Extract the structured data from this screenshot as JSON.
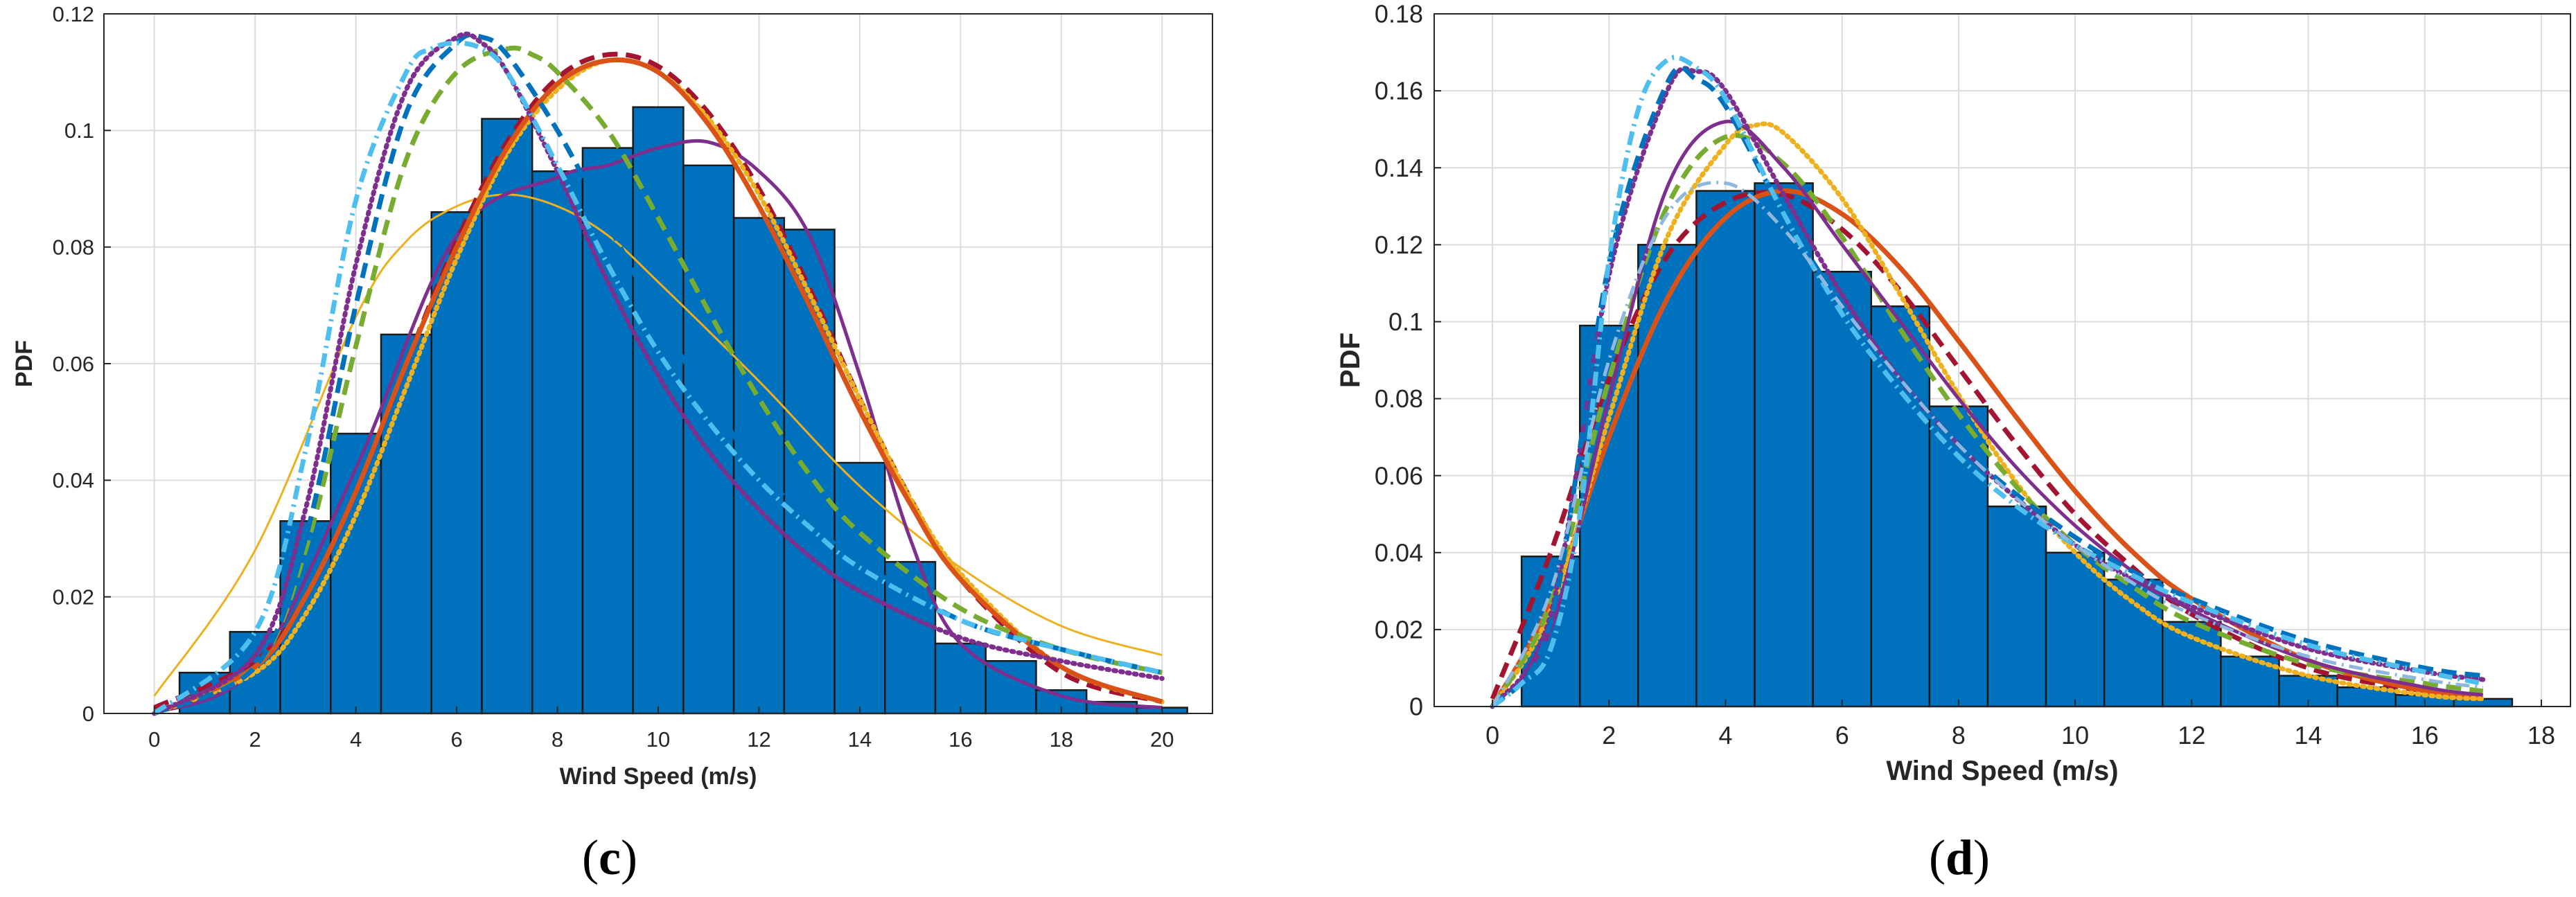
{
  "chart_data": [
    {
      "type": "bar",
      "panel_label": "c",
      "xlabel": "Wind Speed (m/s)",
      "ylabel": "PDF",
      "xlim": [
        -1,
        21
      ],
      "ylim": [
        0,
        0.12
      ],
      "xticks": [
        "0",
        "2",
        "4",
        "6",
        "8",
        "10",
        "12",
        "14",
        "16",
        "18",
        "20"
      ],
      "yticks": [
        "0",
        "0.02",
        "0.04",
        "0.06",
        "0.08",
        "0.1",
        "0.12"
      ],
      "grid": true,
      "bin_width": 1,
      "bins": [
        {
          "center": 1,
          "value": 0.007
        },
        {
          "center": 2,
          "value": 0.014
        },
        {
          "center": 3,
          "value": 0.033
        },
        {
          "center": 4,
          "value": 0.048
        },
        {
          "center": 5,
          "value": 0.065
        },
        {
          "center": 6,
          "value": 0.086
        },
        {
          "center": 7,
          "value": 0.102
        },
        {
          "center": 8,
          "value": 0.093
        },
        {
          "center": 9,
          "value": 0.097
        },
        {
          "center": 10,
          "value": 0.104
        },
        {
          "center": 11,
          "value": 0.094
        },
        {
          "center": 12,
          "value": 0.085
        },
        {
          "center": 13,
          "value": 0.083
        },
        {
          "center": 14,
          "value": 0.043
        },
        {
          "center": 15,
          "value": 0.026
        },
        {
          "center": 16,
          "value": 0.012
        },
        {
          "center": 17,
          "value": 0.009
        },
        {
          "center": 18,
          "value": 0.004
        },
        {
          "center": 19,
          "value": 0.002
        },
        {
          "center": 20,
          "value": 0.001
        }
      ],
      "series": [
        {
          "name": "fit-yellow-thin",
          "color": "#EDB120",
          "style": "solid",
          "weight": "thin",
          "x": [
            0,
            2,
            4,
            5,
            6,
            7,
            8,
            9,
            10,
            12,
            14,
            16,
            18,
            20
          ],
          "y": [
            0.003,
            0.028,
            0.068,
            0.081,
            0.087,
            0.089,
            0.087,
            0.082,
            0.074,
            0.057,
            0.039,
            0.025,
            0.015,
            0.01
          ]
        },
        {
          "name": "fit-purple-solid",
          "color": "#7E2F8E",
          "style": "solid",
          "weight": "medium",
          "x": [
            0,
            2,
            4,
            6,
            8,
            9,
            10,
            11,
            12,
            13,
            14,
            15,
            16,
            18,
            20
          ],
          "y": [
            0.0,
            0.008,
            0.042,
            0.082,
            0.092,
            0.094,
            0.097,
            0.098,
            0.093,
            0.082,
            0.058,
            0.03,
            0.012,
            0.003,
            0.001
          ]
        },
        {
          "name": "fit-darkred-dashed",
          "color": "#A2142F",
          "style": "dashed",
          "weight": "thick",
          "x": [
            0,
            2,
            3,
            4,
            5,
            6,
            7,
            8,
            9,
            10,
            11,
            12,
            13,
            14,
            15,
            16,
            18,
            20
          ],
          "y": [
            0.001,
            0.009,
            0.02,
            0.038,
            0.06,
            0.081,
            0.098,
            0.109,
            0.113,
            0.111,
            0.103,
            0.09,
            0.073,
            0.054,
            0.037,
            0.023,
            0.007,
            0.002
          ]
        },
        {
          "name": "fit-yellow-dotted",
          "color": "#EDB120",
          "style": "dotted",
          "weight": "thick",
          "x": [
            0,
            2,
            3,
            4,
            5,
            6,
            7,
            8,
            9,
            10,
            11,
            12,
            13,
            14,
            15,
            16,
            18,
            20
          ],
          "y": [
            0.0,
            0.007,
            0.017,
            0.034,
            0.056,
            0.078,
            0.096,
            0.107,
            0.112,
            0.11,
            0.102,
            0.089,
            0.072,
            0.054,
            0.037,
            0.024,
            0.008,
            0.002
          ]
        },
        {
          "name": "fit-orange-solid",
          "color": "#D95319",
          "style": "solid",
          "weight": "thick",
          "x": [
            0,
            2,
            3,
            4,
            5,
            6,
            7,
            8,
            9,
            10,
            11,
            12,
            13,
            14,
            15,
            16,
            18,
            20
          ],
          "y": [
            0.0,
            0.008,
            0.02,
            0.038,
            0.06,
            0.08,
            0.097,
            0.108,
            0.112,
            0.11,
            0.101,
            0.087,
            0.07,
            0.052,
            0.036,
            0.023,
            0.008,
            0.002
          ]
        },
        {
          "name": "fit-green-dashed",
          "color": "#77AC30",
          "style": "dashed",
          "weight": "thick",
          "x": [
            0,
            2,
            3,
            4,
            5,
            6,
            7,
            7.5,
            8,
            9,
            10,
            11,
            12,
            13,
            14,
            16,
            18,
            20
          ],
          "y": [
            0.0,
            0.008,
            0.028,
            0.063,
            0.095,
            0.11,
            0.114,
            0.113,
            0.11,
            0.1,
            0.085,
            0.069,
            0.054,
            0.041,
            0.031,
            0.018,
            0.011,
            0.007
          ]
        },
        {
          "name": "fit-blue-dashed",
          "color": "#0072BD",
          "style": "dashed",
          "weight": "thick",
          "x": [
            0,
            2,
            3,
            4,
            5,
            6,
            6.5,
            7,
            8,
            9,
            10,
            11,
            12,
            13,
            14,
            16,
            18,
            20
          ],
          "y": [
            0.0,
            0.008,
            0.03,
            0.07,
            0.103,
            0.115,
            0.116,
            0.113,
            0.1,
            0.084,
            0.068,
            0.054,
            0.042,
            0.033,
            0.026,
            0.016,
            0.011,
            0.007
          ]
        },
        {
          "name": "fit-purple-dotted",
          "color": "#7E2F8E",
          "style": "dotted",
          "weight": "thick",
          "x": [
            0,
            2,
            3,
            4,
            5,
            6,
            6.5,
            7,
            8,
            9,
            10,
            11,
            12,
            13,
            14,
            16,
            18,
            20
          ],
          "y": [
            0.0,
            0.01,
            0.035,
            0.077,
            0.107,
            0.116,
            0.115,
            0.11,
            0.093,
            0.074,
            0.058,
            0.045,
            0.035,
            0.027,
            0.021,
            0.013,
            0.009,
            0.006
          ]
        },
        {
          "name": "fit-cyan-dashdot",
          "color": "#4DBEEE",
          "style": "dashdot",
          "weight": "thick",
          "x": [
            0,
            2,
            3,
            4,
            5,
            5.5,
            6,
            6.5,
            7,
            8,
            9,
            10,
            11,
            12,
            13,
            14,
            16,
            18,
            20
          ],
          "y": [
            0.0,
            0.014,
            0.045,
            0.088,
            0.11,
            0.114,
            0.115,
            0.114,
            0.11,
            0.094,
            0.077,
            0.062,
            0.05,
            0.04,
            0.032,
            0.025,
            0.016,
            0.011,
            0.007
          ]
        }
      ]
    },
    {
      "type": "bar",
      "panel_label": "d",
      "xlabel": "Wind Speed (m/s)",
      "ylabel": "PDF",
      "xlim": [
        -1,
        18.5
      ],
      "ylim": [
        0,
        0.18
      ],
      "xticks": [
        "0",
        "2",
        "4",
        "6",
        "8",
        "10",
        "12",
        "14",
        "16",
        "18"
      ],
      "yticks": [
        "0",
        "0.02",
        "0.04",
        "0.06",
        "0.08",
        "0.1",
        "0.12",
        "0.14",
        "0.16",
        "0.18"
      ],
      "grid": true,
      "bin_width": 1,
      "bins": [
        {
          "center": 1,
          "value": 0.039
        },
        {
          "center": 2,
          "value": 0.099
        },
        {
          "center": 3,
          "value": 0.12
        },
        {
          "center": 4,
          "value": 0.134
        },
        {
          "center": 5,
          "value": 0.136
        },
        {
          "center": 6,
          "value": 0.113
        },
        {
          "center": 7,
          "value": 0.104
        },
        {
          "center": 8,
          "value": 0.078
        },
        {
          "center": 9,
          "value": 0.052
        },
        {
          "center": 10,
          "value": 0.04
        },
        {
          "center": 11,
          "value": 0.033
        },
        {
          "center": 12,
          "value": 0.022
        },
        {
          "center": 13,
          "value": 0.013
        },
        {
          "center": 14,
          "value": 0.008
        },
        {
          "center": 15,
          "value": 0.005
        },
        {
          "center": 16,
          "value": 0.003
        },
        {
          "center": 17,
          "value": 0.002
        }
      ],
      "series": [
        {
          "name": "fit-darkred-dashed",
          "color": "#A2142F",
          "style": "dashed",
          "weight": "thick",
          "x": [
            0,
            1,
            2,
            3,
            4,
            5,
            6,
            7,
            8,
            9,
            10,
            11,
            12,
            14,
            16,
            17
          ],
          "y": [
            0.002,
            0.04,
            0.085,
            0.117,
            0.131,
            0.133,
            0.124,
            0.108,
            0.088,
            0.068,
            0.05,
            0.036,
            0.024,
            0.01,
            0.004,
            0.002
          ]
        },
        {
          "name": "fit-orange-solid",
          "color": "#D95319",
          "style": "solid",
          "weight": "thick",
          "x": [
            0,
            1,
            2,
            3,
            4,
            5,
            6,
            7,
            8,
            9,
            10,
            11,
            12,
            14,
            16,
            17
          ],
          "y": [
            0.0,
            0.027,
            0.07,
            0.106,
            0.127,
            0.134,
            0.128,
            0.114,
            0.095,
            0.075,
            0.056,
            0.04,
            0.028,
            0.012,
            0.004,
            0.002
          ]
        },
        {
          "name": "fit-yellow-dotted",
          "color": "#EDB120",
          "style": "dotted",
          "weight": "thick",
          "x": [
            0,
            1,
            2,
            3,
            4,
            4.5,
            5,
            6,
            7,
            8,
            9,
            10,
            11,
            12,
            14,
            16,
            17
          ],
          "y": [
            0.0,
            0.025,
            0.075,
            0.122,
            0.146,
            0.151,
            0.149,
            0.132,
            0.107,
            0.081,
            0.058,
            0.04,
            0.027,
            0.018,
            0.008,
            0.003,
            0.002
          ]
        },
        {
          "name": "fit-green-dashed",
          "color": "#77AC30",
          "style": "dashed",
          "weight": "thick",
          "x": [
            0,
            1,
            2,
            3,
            4,
            5,
            6,
            7,
            8,
            9,
            10,
            11,
            12,
            14,
            16,
            17
          ],
          "y": [
            0.0,
            0.027,
            0.085,
            0.13,
            0.148,
            0.141,
            0.122,
            0.098,
            0.076,
            0.057,
            0.042,
            0.031,
            0.022,
            0.011,
            0.006,
            0.004
          ]
        },
        {
          "name": "fit-purple-solid",
          "color": "#7E2F8E",
          "style": "solid",
          "weight": "medium",
          "x": [
            0,
            1,
            2,
            3,
            4,
            5,
            6,
            7,
            8,
            9,
            10,
            11,
            12,
            14,
            16,
            17
          ],
          "y": [
            0.0,
            0.02,
            0.08,
            0.135,
            0.152,
            0.14,
            0.12,
            0.1,
            0.08,
            0.062,
            0.047,
            0.035,
            0.025,
            0.012,
            0.005,
            0.003
          ]
        },
        {
          "name": "fit-purple-dotted",
          "color": "#7E2F8E",
          "style": "dotted",
          "weight": "thick",
          "x": [
            0,
            1,
            2,
            3,
            3.5,
            4,
            5,
            6,
            7,
            8,
            9,
            10,
            11,
            12,
            14,
            16,
            17
          ],
          "y": [
            0.0,
            0.024,
            0.112,
            0.16,
            0.165,
            0.16,
            0.133,
            0.107,
            0.085,
            0.068,
            0.054,
            0.042,
            0.033,
            0.026,
            0.015,
            0.009,
            0.007
          ]
        },
        {
          "name": "fit-blue-dashed",
          "color": "#0072BD",
          "style": "dashed",
          "weight": "thick",
          "x": [
            0,
            1,
            2,
            3,
            3.5,
            4,
            5,
            6,
            7,
            8,
            9,
            10,
            11,
            12,
            14,
            16,
            17
          ],
          "y": [
            0.0,
            0.022,
            0.115,
            0.162,
            0.163,
            0.156,
            0.128,
            0.104,
            0.084,
            0.068,
            0.055,
            0.044,
            0.035,
            0.028,
            0.017,
            0.01,
            0.008
          ]
        },
        {
          "name": "fit-cyan-dashdot",
          "color": "#4DBEEE",
          "style": "dashdot",
          "weight": "thick",
          "x": [
            0,
            0.5,
            1,
            1.5,
            2,
            2.5,
            3,
            3.5,
            4,
            5,
            6,
            7,
            8,
            9,
            10,
            11,
            12,
            14,
            16,
            17
          ],
          "y": [
            0.0,
            0.006,
            0.015,
            0.05,
            0.116,
            0.155,
            0.168,
            0.166,
            0.158,
            0.128,
            0.102,
            0.082,
            0.065,
            0.052,
            0.042,
            0.034,
            0.027,
            0.016,
            0.009,
            0.006
          ]
        },
        {
          "name": "fit-lightblue-dashdot",
          "color": "#8FB8E0",
          "style": "dashdot",
          "weight": "medium",
          "x": [
            0,
            1,
            2,
            3,
            4,
            5,
            6,
            7,
            8,
            9,
            10,
            11,
            12,
            14,
            16,
            17
          ],
          "y": [
            0.0,
            0.03,
            0.09,
            0.128,
            0.136,
            0.124,
            0.104,
            0.085,
            0.068,
            0.054,
            0.042,
            0.032,
            0.024,
            0.013,
            0.007,
            0.005
          ]
        }
      ]
    }
  ],
  "captions": {
    "left": {
      "open": "(",
      "label": "c",
      "close": ")"
    },
    "right": {
      "open": "(",
      "label": "d",
      "close": ")"
    }
  },
  "colors": {
    "bar_fill": "#0072BD",
    "bar_edge": "#1a1a1a",
    "grid": "#dcdcdc",
    "axis": "#262626"
  }
}
